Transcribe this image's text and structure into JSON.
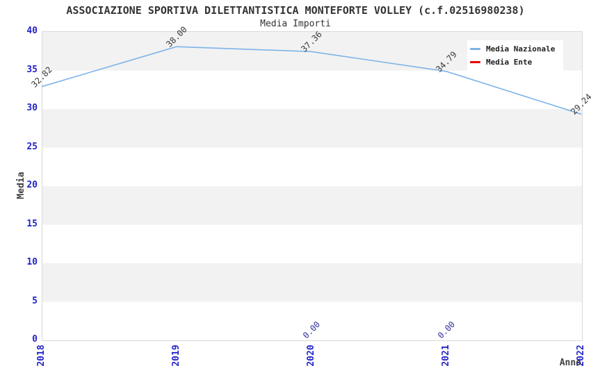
{
  "title": "ASSOCIAZIONE SPORTIVA DILETTANTISTICA MONTEFORTE VOLLEY (c.f.02516980238)",
  "subtitle": "Media Importi",
  "chart_data": {
    "type": "line",
    "x": [
      2018,
      2019,
      2020,
      2021,
      2022
    ],
    "xlabel": "Anno",
    "ylabel": "Media",
    "ylim": [
      0,
      40
    ],
    "ytick_interval": 5,
    "grid": "horizontal-bands",
    "legend_position": "top-right",
    "series": [
      {
        "name": "Media Nazionale",
        "color": "#7EB3E8",
        "x": [
          2018,
          2019,
          2020,
          2021,
          2022
        ],
        "values": [
          32.82,
          38.0,
          37.36,
          34.79,
          29.24
        ],
        "labels": [
          "32.82",
          "38.00",
          "37.36",
          "34.79",
          "29.24"
        ],
        "drawn": true
      },
      {
        "name": "Media Ente",
        "color": "#E60000",
        "x": [
          2020,
          2021
        ],
        "values": [
          0.0,
          0.0
        ],
        "labels": [
          "0.00",
          "0.00"
        ],
        "drawn": false
      }
    ]
  },
  "axes": {
    "y_ticks": [
      "40",
      "35",
      "30",
      "25",
      "20",
      "15",
      "10",
      "5",
      "0"
    ],
    "x_ticks": [
      "2018",
      "2019",
      "2020",
      "2021",
      "2022"
    ],
    "y_label": "Media",
    "x_label": "Anno"
  },
  "legend": {
    "items": [
      {
        "label": "Media Nazionale",
        "color": "#7EB3E8"
      },
      {
        "label": "Media Ente",
        "color": "#E60000"
      }
    ]
  },
  "colors": {
    "tick_label": "#2222CC",
    "band_gray": "#F2F2F2",
    "plot_border": "#D8D8D8",
    "value_label": "#3A3A3A",
    "ente_value_label": "#333399",
    "axis_title": "#404040",
    "title_text": "#333333"
  }
}
